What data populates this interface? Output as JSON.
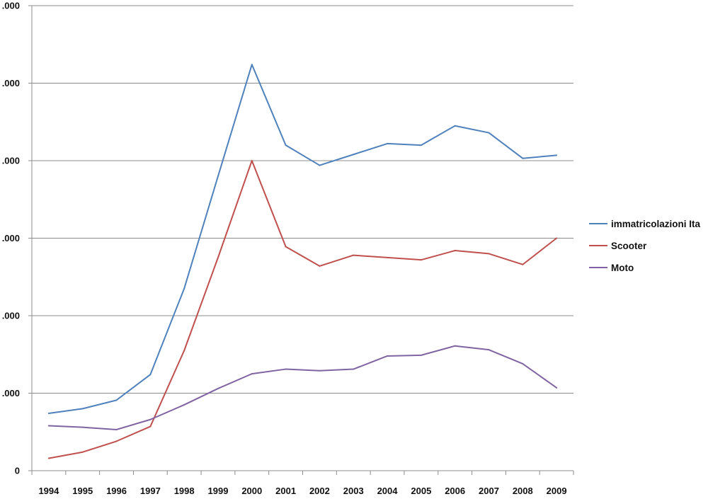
{
  "chart_data": {
    "type": "line",
    "title": "",
    "xlabel": "",
    "ylabel": "",
    "categories": [
      "1994",
      "1995",
      "1996",
      "1997",
      "1998",
      "1999",
      "2000",
      "2001",
      "2002",
      "2003",
      "2004",
      "2005",
      "2006",
      "2007",
      "2008",
      "2009"
    ],
    "ylim": [
      0,
      600
    ],
    "y_ticks": [
      0,
      100,
      200,
      300,
      400,
      500,
      600
    ],
    "y_tick_labels": [
      "0",
      ".000",
      ".000",
      ".000",
      ".000",
      ".000",
      ".000"
    ],
    "grid": true,
    "legend_position": "right",
    "series": [
      {
        "name": "immatricolazioni Ita",
        "color": "#4F81BD",
        "values": [
          74,
          80,
          91,
          124,
          235,
          380,
          524,
          420,
          394,
          408,
          422,
          420,
          445,
          436,
          403,
          407
        ]
      },
      {
        "name": "Scooter",
        "color": "#C0504D",
        "values": [
          16,
          24,
          38,
          57,
          155,
          275,
          400,
          289,
          264,
          278,
          275,
          272,
          284,
          280,
          266,
          300
        ]
      },
      {
        "name": "Moto",
        "color": "#8064A2",
        "values": [
          58,
          56,
          53,
          66,
          85,
          106,
          125,
          131,
          129,
          131,
          148,
          149,
          161,
          156,
          138,
          107
        ]
      }
    ]
  }
}
